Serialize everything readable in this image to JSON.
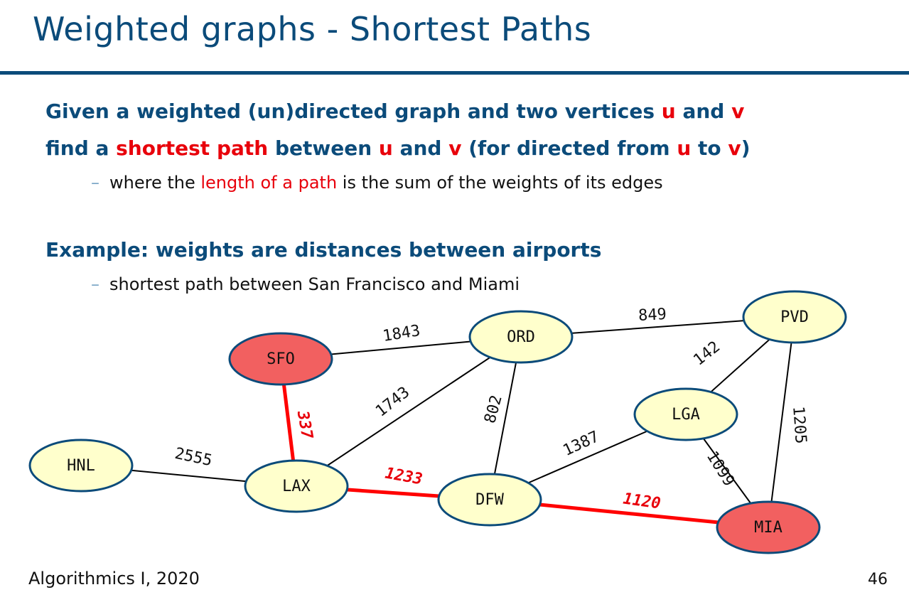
{
  "title": "Weighted graphs - Shortest Paths",
  "bullet1": {
    "line1": [
      {
        "text": "Given a weighted (un)directed graph and two vertices ",
        "red": false
      },
      {
        "text": "u",
        "red": true
      },
      {
        "text": " and ",
        "red": false
      },
      {
        "text": "v",
        "red": true
      }
    ],
    "line2": [
      {
        "text": "find a ",
        "red": false
      },
      {
        "text": "shortest path",
        "red": true
      },
      {
        "text": " between ",
        "red": false
      },
      {
        "text": "u",
        "red": true
      },
      {
        "text": " and ",
        "red": false
      },
      {
        "text": "v",
        "red": true
      },
      {
        "text": " (for directed from ",
        "red": false
      },
      {
        "text": "u",
        "red": true
      },
      {
        "text": " to ",
        "red": false
      },
      {
        "text": "v",
        "red": true
      },
      {
        "text": ")",
        "red": false
      }
    ],
    "sub": [
      {
        "text": "where the ",
        "red": false
      },
      {
        "text": "length of a path",
        "red": true
      },
      {
        "text": " is the sum of the weights of its edges",
        "red": false
      }
    ]
  },
  "bullet2": {
    "line1": "Example: weights are distances between airports",
    "sub": "shortest path between San Francisco and Miami"
  },
  "dash": "–",
  "graph": {
    "colors": {
      "node_fill": "#ffffcc",
      "node_stroke": "#0b4b7a",
      "highlight_fill": "#f26060",
      "highlight_edge": "#ff0000",
      "edge": "#000000"
    },
    "nodes": [
      {
        "id": "SFO",
        "label": "SFO",
        "highlight": true
      },
      {
        "id": "ORD",
        "label": "ORD",
        "highlight": false
      },
      {
        "id": "PVD",
        "label": "PVD",
        "highlight": false
      },
      {
        "id": "LGA",
        "label": "LGA",
        "highlight": false
      },
      {
        "id": "HNL",
        "label": "HNL",
        "highlight": false
      },
      {
        "id": "LAX",
        "label": "LAX",
        "highlight": false
      },
      {
        "id": "DFW",
        "label": "DFW",
        "highlight": false
      },
      {
        "id": "MIA",
        "label": "MIA",
        "highlight": true
      }
    ],
    "edges": [
      {
        "from": "SFO",
        "to": "ORD",
        "weight": "1843",
        "highlight": false
      },
      {
        "from": "ORD",
        "to": "PVD",
        "weight": "849",
        "highlight": false
      },
      {
        "from": "PVD",
        "to": "LGA",
        "weight": "142",
        "highlight": false
      },
      {
        "from": "PVD",
        "to": "MIA",
        "weight": "1205",
        "highlight": false
      },
      {
        "from": "SFO",
        "to": "LAX",
        "weight": "337",
        "highlight": true
      },
      {
        "from": "LAX",
        "to": "ORD",
        "weight": "1743",
        "highlight": false
      },
      {
        "from": "ORD",
        "to": "DFW",
        "weight": "802",
        "highlight": false
      },
      {
        "from": "DFW",
        "to": "LGA",
        "weight": "1387",
        "highlight": false
      },
      {
        "from": "LGA",
        "to": "MIA",
        "weight": "1099",
        "highlight": false
      },
      {
        "from": "HNL",
        "to": "LAX",
        "weight": "2555",
        "highlight": false
      },
      {
        "from": "LAX",
        "to": "DFW",
        "weight": "1233",
        "highlight": true
      },
      {
        "from": "DFW",
        "to": "MIA",
        "weight": "1120",
        "highlight": true
      }
    ]
  },
  "footer": {
    "left": "Algorithmics I, 2020",
    "right": "46"
  }
}
